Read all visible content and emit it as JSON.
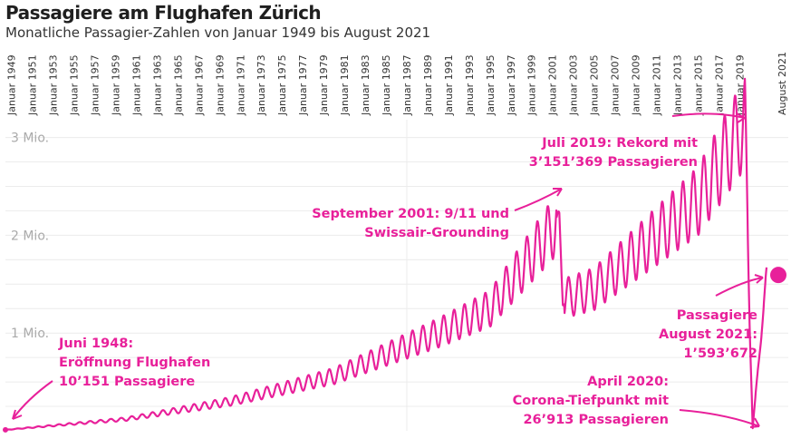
{
  "chart_data": {
    "type": "line",
    "title": "Passagiere am Flughafen Zürich",
    "subtitle": "Monatliche Passagier-Zahlen von Januar 1949 bis August 2021",
    "x_tick_labels": [
      "Januar 1949",
      "Januar 1951",
      "Januar 1953",
      "Januar 1955",
      "Januar 1957",
      "Januar 1959",
      "Januar 1961",
      "Januar 1963",
      "Januar 1965",
      "Januar 1967",
      "Januar 1969",
      "Januar 1971",
      "Januar 1973",
      "Januar 1975",
      "Januar 1977",
      "Januar 1979",
      "Januar 1981",
      "Januar 1983",
      "Januar 1985",
      "Januar 1987",
      "Januar 1989",
      "Januar 1991",
      "Januar 1993",
      "Januar 1995",
      "Januar 1997",
      "Januar 1999",
      "Januar 2001",
      "Januar 2003",
      "Januar 2005",
      "Januar 2007",
      "Januar 2009",
      "Januar 2011",
      "Januar 2013",
      "Januar 2015",
      "Januar 2017",
      "Januar 2019",
      "August 2021"
    ],
    "y_tick_labels": [
      "1 Mio.",
      "2 Mio.",
      "3 Mio."
    ],
    "ylim": [
      0,
      3200000
    ],
    "xlim": [
      "1948-06",
      "2021-08"
    ],
    "grid": true,
    "line_color": "#e8209a",
    "series": [
      {
        "x_unit": "year",
        "seasonal_pattern": "annual oscillation, peak in summer",
        "anchor_points": [
          {
            "date": "1948-06",
            "value": 10151
          },
          {
            "date": "1960-01",
            "value": 120000
          },
          {
            "date": "1970-01",
            "value": 300000
          },
          {
            "date": "1980-01",
            "value": 560000
          },
          {
            "date": "1990-01",
            "value": 1000000
          },
          {
            "date": "1995-01",
            "value": 1250000
          },
          {
            "date": "2001-09",
            "value": 2150000
          },
          {
            "date": "2002-01",
            "value": 1350000
          },
          {
            "date": "2005-01",
            "value": 1450000
          },
          {
            "date": "2010-01",
            "value": 1900000
          },
          {
            "date": "2015-01",
            "value": 2350000
          },
          {
            "date": "2019-07",
            "value": 3151369
          },
          {
            "date": "2020-04",
            "value": 26913
          },
          {
            "date": "2021-08",
            "value": 1593672
          }
        ]
      }
    ],
    "annotations": [
      {
        "lines": [
          "Juni 1948:",
          "Eröffnung Flughafen",
          "10’151 Passagiere"
        ]
      },
      {
        "lines": [
          "September 2001: 9/11 und",
          "Swissair-Grounding"
        ]
      },
      {
        "lines": [
          "Juli 2019: Rekord mit",
          "3’151’369 Passagieren"
        ]
      },
      {
        "lines": [
          "Passagiere",
          "August 2021:",
          "1’593’672"
        ]
      },
      {
        "lines": [
          "April 2020:",
          "Corona-Tiefpunkt mit",
          "26’913 Passagieren"
        ]
      }
    ]
  }
}
